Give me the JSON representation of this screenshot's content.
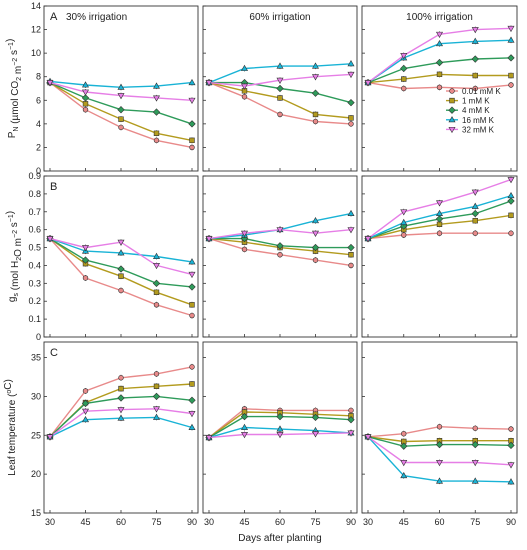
{
  "x_label": "Days after planting",
  "x_ticks": [
    30,
    45,
    60,
    75,
    90
  ],
  "column_titles": [
    "30% irrigation",
    "60% irrigation",
    "100% irrigation"
  ],
  "legend": [
    {
      "name": "0.01 mM K",
      "color": "#e88a8a",
      "marker": "circle"
    },
    {
      "name": "1 mM K",
      "color": "#b39b1e",
      "marker": "square"
    },
    {
      "name": "4 mM K",
      "color": "#2e9b5a",
      "marker": "diamond"
    },
    {
      "name": "16 mM K",
      "color": "#19b3d6",
      "marker": "triangle-up"
    },
    {
      "name": "32 mM K",
      "color": "#e67ee6",
      "marker": "triangle-down"
    }
  ],
  "chart_data": [
    {
      "type": "line",
      "row_label": "A",
      "ylabel_parts": [
        "P",
        "N",
        " (µmol CO",
        "2",
        " m",
        "−2",
        " s",
        "−1",
        ")"
      ],
      "ylim": [
        0,
        14
      ],
      "yticks": [
        0,
        2,
        4,
        6,
        8,
        10,
        12,
        14
      ],
      "panels": [
        {
          "series": [
            [
              7.5,
              5.2,
              3.7,
              2.6,
              2.0
            ],
            [
              7.5,
              5.7,
              4.4,
              3.2,
              2.6
            ],
            [
              7.5,
              6.2,
              5.2,
              5.0,
              4.0
            ],
            [
              7.6,
              7.3,
              7.1,
              7.2,
              7.5
            ],
            [
              7.5,
              6.7,
              6.4,
              6.2,
              6.0
            ]
          ]
        },
        {
          "series": [
            [
              7.5,
              6.3,
              4.8,
              4.2,
              4.0
            ],
            [
              7.5,
              6.8,
              6.2,
              4.8,
              4.5
            ],
            [
              7.5,
              7.5,
              7.0,
              6.6,
              5.8
            ],
            [
              7.5,
              8.7,
              8.9,
              8.9,
              9.1
            ],
            [
              7.5,
              7.2,
              7.7,
              8.0,
              8.2
            ]
          ]
        },
        {
          "series": [
            [
              7.5,
              7.0,
              7.1,
              7.0,
              7.3
            ],
            [
              7.5,
              7.8,
              8.2,
              8.1,
              8.1
            ],
            [
              7.5,
              8.7,
              9.2,
              9.5,
              9.6
            ],
            [
              7.5,
              9.6,
              10.8,
              11.0,
              11.1
            ],
            [
              7.5,
              9.8,
              11.6,
              12.0,
              12.1
            ]
          ]
        }
      ]
    },
    {
      "type": "line",
      "row_label": "B",
      "ylabel_parts": [
        "g",
        "s",
        " (mol H",
        "2",
        "O  m",
        "−2",
        " s",
        "−1",
        ")"
      ],
      "ylim": [
        0,
        0.9
      ],
      "yticks": [
        0,
        0.1,
        0.2,
        0.3,
        0.4,
        0.5,
        0.6,
        0.7,
        0.8,
        0.9
      ],
      "panels": [
        {
          "series": [
            [
              0.55,
              0.33,
              0.26,
              0.18,
              0.12
            ],
            [
              0.55,
              0.41,
              0.34,
              0.25,
              0.18
            ],
            [
              0.55,
              0.43,
              0.38,
              0.3,
              0.28
            ],
            [
              0.55,
              0.48,
              0.47,
              0.45,
              0.42
            ],
            [
              0.55,
              0.5,
              0.53,
              0.4,
              0.35
            ]
          ]
        },
        {
          "series": [
            [
              0.55,
              0.49,
              0.46,
              0.43,
              0.4
            ],
            [
              0.55,
              0.53,
              0.5,
              0.48,
              0.46
            ],
            [
              0.55,
              0.55,
              0.51,
              0.5,
              0.5
            ],
            [
              0.55,
              0.57,
              0.6,
              0.65,
              0.69
            ],
            [
              0.55,
              0.58,
              0.6,
              0.58,
              0.6
            ]
          ]
        },
        {
          "series": [
            [
              0.55,
              0.57,
              0.58,
              0.58,
              0.58
            ],
            [
              0.55,
              0.6,
              0.63,
              0.65,
              0.68
            ],
            [
              0.55,
              0.62,
              0.66,
              0.69,
              0.76
            ],
            [
              0.55,
              0.64,
              0.69,
              0.73,
              0.79
            ],
            [
              0.55,
              0.7,
              0.75,
              0.81,
              0.88
            ]
          ]
        }
      ]
    },
    {
      "type": "line",
      "row_label": "C",
      "ylabel_parts": [
        "Leaf temperature (",
        "o",
        "C)"
      ],
      "ylim": [
        15,
        37
      ],
      "yticks": [
        15,
        20,
        25,
        30,
        35
      ],
      "panels": [
        {
          "series": [
            [
              24.8,
              30.7,
              32.4,
              32.9,
              33.8
            ],
            [
              24.8,
              29.2,
              31.0,
              31.3,
              31.6
            ],
            [
              24.8,
              29.1,
              29.8,
              30.0,
              29.5
            ],
            [
              24.8,
              27.0,
              27.2,
              27.3,
              26.0
            ],
            [
              24.8,
              28.1,
              28.3,
              28.4,
              27.8
            ]
          ]
        },
        {
          "series": [
            [
              24.7,
              28.4,
              28.2,
              28.2,
              28.2
            ],
            [
              24.7,
              28.0,
              27.9,
              27.7,
              27.5
            ],
            [
              24.7,
              27.4,
              27.4,
              27.3,
              27.0
            ],
            [
              24.7,
              26.0,
              25.8,
              25.6,
              25.3
            ],
            [
              24.7,
              25.1,
              25.1,
              25.2,
              25.3
            ]
          ]
        },
        {
          "series": [
            [
              24.8,
              25.2,
              26.1,
              25.9,
              25.8
            ],
            [
              24.8,
              24.2,
              24.3,
              24.3,
              24.3
            ],
            [
              24.8,
              23.6,
              23.8,
              23.8,
              23.7
            ],
            [
              24.8,
              19.8,
              19.1,
              19.1,
              19.0
            ],
            [
              24.8,
              21.5,
              21.5,
              21.5,
              21.2
            ]
          ]
        }
      ]
    }
  ]
}
